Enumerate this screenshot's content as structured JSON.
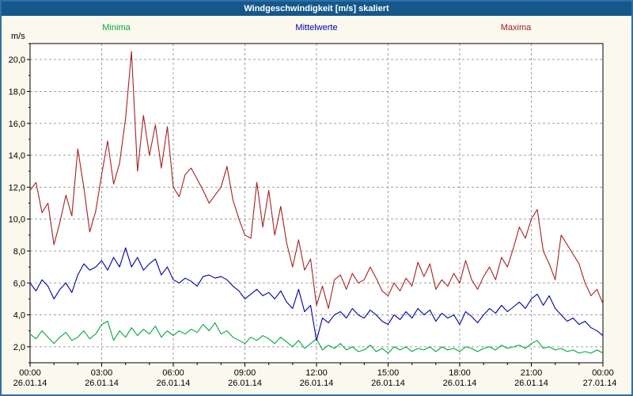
{
  "window": {
    "title": "Windgeschwindigkeit [m/s] skaliert"
  },
  "colors": {
    "title_bar": "#15588a",
    "page_border": "#2f6fa8",
    "background": "#fbf8ee",
    "plot_background": "#ffffff",
    "grid": "#a0a0a0",
    "axis": "#000000",
    "tick_text": "#000000"
  },
  "chart_data": {
    "type": "line",
    "title": "Windgeschwindigkeit [m/s] skaliert",
    "ylabel": "m/s",
    "xlabel": "",
    "ylim": [
      1,
      21
    ],
    "xlim_hours": [
      0,
      24
    ],
    "grid": "dashed",
    "legend_position": "top",
    "sample_interval_minutes": 15,
    "y_ticks": [
      {
        "value": 2,
        "label": "2,0"
      },
      {
        "value": 4,
        "label": "4,0"
      },
      {
        "value": 6,
        "label": "6,0"
      },
      {
        "value": 8,
        "label": "8,0"
      },
      {
        "value": 10,
        "label": "10,0"
      },
      {
        "value": 12,
        "label": "12,0"
      },
      {
        "value": 14,
        "label": "14,0"
      },
      {
        "value": 16,
        "label": "16,0"
      },
      {
        "value": 18,
        "label": "18,0"
      },
      {
        "value": 20,
        "label": "20,0"
      }
    ],
    "x_ticks": [
      {
        "hour": 0,
        "time": "00:00",
        "date": "26.01.14"
      },
      {
        "hour": 3,
        "time": "03:00",
        "date": "26.01.14"
      },
      {
        "hour": 6,
        "time": "06:00",
        "date": "26.01.14"
      },
      {
        "hour": 9,
        "time": "09:00",
        "date": "26.01.14"
      },
      {
        "hour": 12,
        "time": "12:00",
        "date": "26.01.14"
      },
      {
        "hour": 15,
        "time": "15:00",
        "date": "26.01.14"
      },
      {
        "hour": 18,
        "time": "18:00",
        "date": "26.01.14"
      },
      {
        "hour": 21,
        "time": "21:00",
        "date": "26.01.14"
      },
      {
        "hour": 24,
        "time": "00:00",
        "date": "27.01.14"
      }
    ],
    "series": [
      {
        "name": "Minima",
        "color": "#00a83c",
        "values": [
          2.8,
          2.5,
          3.0,
          2.6,
          2.2,
          2.6,
          2.9,
          2.4,
          2.6,
          3.0,
          2.5,
          2.8,
          3.4,
          3.6,
          2.4,
          3.0,
          2.6,
          3.2,
          2.7,
          3.1,
          2.8,
          3.3,
          2.6,
          3.0,
          2.7,
          3.0,
          2.8,
          3.1,
          2.9,
          3.4,
          3.0,
          3.5,
          2.8,
          3.0,
          2.6,
          2.4,
          2.2,
          2.6,
          2.4,
          2.7,
          2.5,
          2.2,
          2.6,
          2.3,
          2.0,
          2.4,
          1.9,
          2.2,
          2.5,
          1.8,
          2.1,
          1.9,
          2.2,
          1.8,
          2.0,
          1.7,
          1.8,
          2.1,
          1.7,
          1.9,
          1.6,
          2.0,
          1.8,
          2.0,
          1.7,
          1.9,
          1.8,
          2.0,
          1.7,
          2.0,
          1.8,
          1.9,
          1.7,
          2.0,
          1.9,
          1.7,
          1.9,
          2.0,
          1.8,
          2.1,
          1.9,
          2.0,
          2.1,
          1.9,
          2.2,
          2.4,
          1.9,
          2.0,
          1.8,
          1.9,
          1.7,
          1.8,
          1.6,
          1.7,
          1.6,
          1.8,
          1.6
        ]
      },
      {
        "name": "Mittelwerte",
        "color": "#0000a8",
        "values": [
          6.0,
          5.5,
          6.2,
          5.8,
          5.0,
          5.6,
          6.0,
          5.4,
          6.5,
          7.2,
          6.8,
          7.0,
          7.4,
          6.8,
          7.6,
          7.0,
          8.2,
          7.0,
          7.6,
          6.8,
          7.2,
          7.5,
          6.5,
          7.0,
          6.2,
          6.0,
          6.3,
          6.1,
          5.8,
          6.4,
          6.5,
          6.3,
          6.4,
          6.2,
          5.8,
          5.5,
          5.0,
          5.3,
          5.6,
          5.2,
          5.4,
          5.0,
          5.5,
          4.8,
          4.4,
          5.6,
          4.2,
          4.6,
          2.4,
          3.8,
          3.5,
          4.0,
          4.2,
          3.8,
          4.4,
          4.0,
          3.8,
          4.3,
          4.0,
          3.6,
          3.4,
          4.0,
          3.7,
          4.2,
          3.8,
          4.4,
          4.0,
          4.3,
          3.6,
          4.1,
          3.8,
          4.0,
          3.4,
          4.2,
          3.9,
          3.5,
          4.0,
          4.4,
          4.1,
          4.6,
          4.2,
          4.5,
          4.8,
          4.4,
          5.0,
          5.3,
          4.6,
          5.2,
          4.4,
          4.0,
          3.6,
          3.8,
          3.4,
          3.6,
          3.2,
          3.0,
          2.7
        ]
      },
      {
        "name": "Maxima",
        "color": "#a62121",
        "values": [
          11.8,
          12.3,
          10.4,
          11.0,
          8.4,
          9.8,
          11.5,
          10.2,
          14.4,
          12.0,
          9.2,
          10.5,
          12.8,
          14.9,
          12.2,
          13.5,
          16.3,
          20.5,
          13.0,
          16.5,
          14.0,
          15.9,
          13.2,
          15.8,
          12.0,
          11.4,
          12.8,
          13.2,
          12.5,
          11.8,
          11.0,
          11.5,
          12.0,
          13.3,
          11.2,
          10.0,
          9.0,
          8.8,
          12.3,
          9.5,
          11.8,
          9.0,
          10.8,
          8.5,
          7.0,
          8.7,
          6.8,
          7.5,
          4.6,
          5.8,
          4.4,
          6.2,
          6.5,
          5.6,
          6.6,
          6.0,
          6.2,
          7.0,
          6.3,
          5.5,
          5.2,
          6.0,
          5.5,
          6.3,
          5.8,
          7.3,
          6.4,
          7.2,
          5.6,
          6.2,
          5.8,
          6.6,
          6.0,
          7.4,
          6.2,
          5.6,
          6.4,
          7.0,
          6.2,
          7.6,
          7.0,
          8.2,
          9.5,
          8.8,
          10.0,
          10.6,
          8.0,
          7.2,
          6.2,
          9.0,
          8.4,
          7.8,
          7.2,
          6.0,
          5.2,
          5.6,
          4.7
        ]
      }
    ]
  }
}
